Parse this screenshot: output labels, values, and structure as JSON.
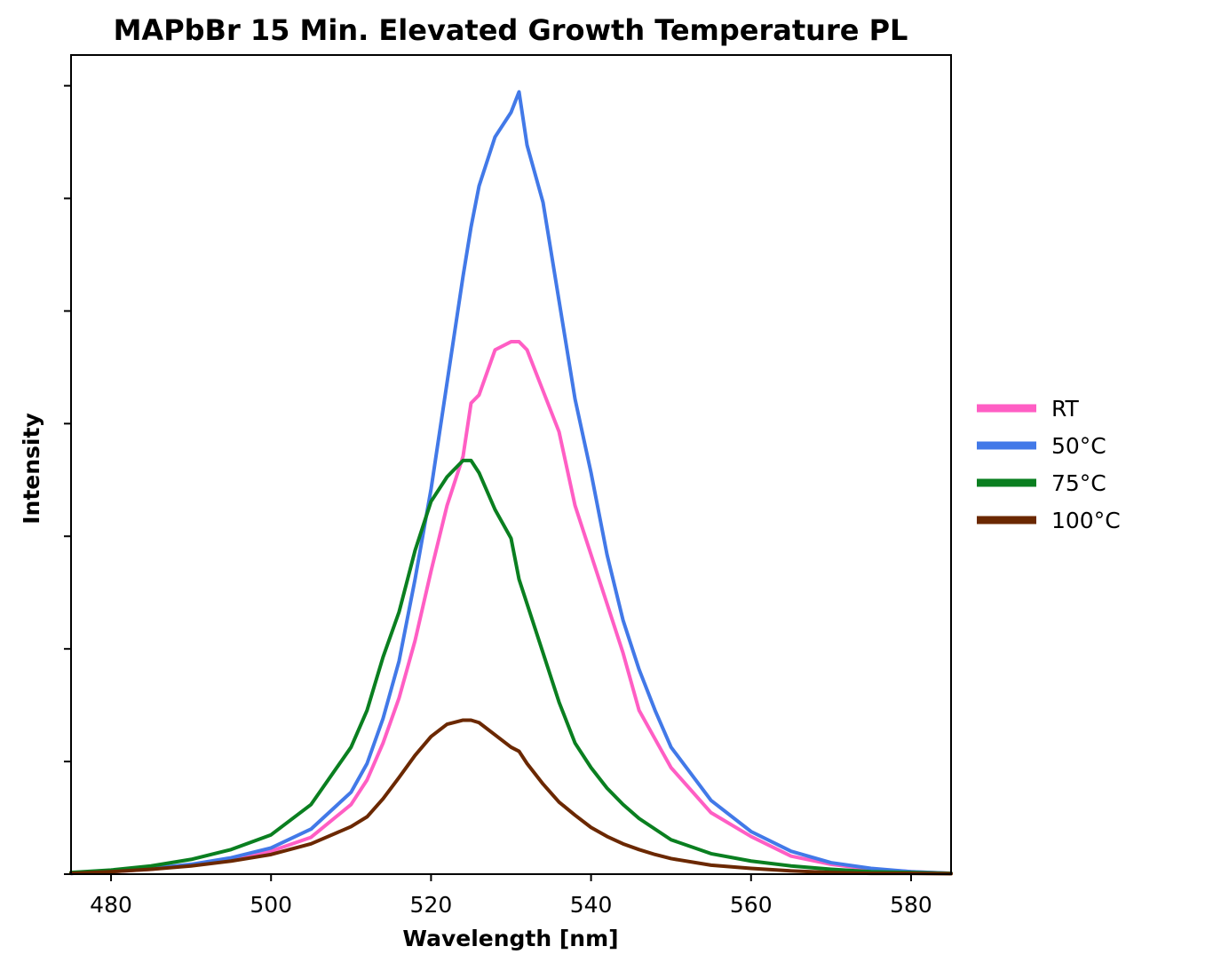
{
  "chart_data": {
    "type": "line",
    "title": "MAPbBr 15 Min. Elevated Growth Temperature PL",
    "xlabel": "Wavelength [nm]",
    "ylabel": "Intensity",
    "xlim": [
      475,
      585
    ],
    "ylim": [
      0,
      1.0
    ],
    "xticks": [
      480,
      500,
      520,
      540,
      560,
      580
    ],
    "ytick_labels_shown": false,
    "yticks": [
      0,
      0.1375,
      0.275,
      0.4125,
      0.55,
      0.6875,
      0.825,
      0.9625
    ],
    "grid": false,
    "legend_position": "right-outside",
    "x": [
      475,
      480,
      485,
      490,
      495,
      500,
      505,
      510,
      512,
      514,
      516,
      518,
      520,
      522,
      524,
      525,
      526,
      528,
      530,
      531,
      532,
      534,
      536,
      538,
      540,
      542,
      544,
      546,
      548,
      550,
      555,
      560,
      565,
      570,
      575,
      580,
      585
    ],
    "series": [
      {
        "name": "RT",
        "color": "#ff5ec4",
        "values": [
          0.001,
          0.003,
          0.006,
          0.011,
          0.018,
          0.028,
          0.045,
          0.085,
          0.115,
          0.16,
          0.215,
          0.285,
          0.37,
          0.45,
          0.51,
          0.575,
          0.585,
          0.64,
          0.65,
          0.65,
          0.64,
          0.59,
          0.54,
          0.45,
          0.39,
          0.33,
          0.27,
          0.2,
          0.165,
          0.13,
          0.075,
          0.046,
          0.022,
          0.012,
          0.006,
          0.003,
          0.001
        ]
      },
      {
        "name": "50°C",
        "color": "#4279e8",
        "values": [
          0.001,
          0.003,
          0.007,
          0.012,
          0.02,
          0.032,
          0.055,
          0.1,
          0.135,
          0.19,
          0.26,
          0.36,
          0.47,
          0.6,
          0.73,
          0.79,
          0.84,
          0.9,
          0.93,
          0.955,
          0.89,
          0.82,
          0.7,
          0.58,
          0.49,
          0.39,
          0.31,
          0.25,
          0.2,
          0.155,
          0.09,
          0.052,
          0.028,
          0.014,
          0.007,
          0.003,
          0.001
        ]
      },
      {
        "name": "75°C",
        "color": "#0a7f20",
        "values": [
          0.002,
          0.005,
          0.01,
          0.018,
          0.03,
          0.048,
          0.085,
          0.155,
          0.2,
          0.265,
          0.32,
          0.395,
          0.455,
          0.485,
          0.505,
          0.505,
          0.49,
          0.445,
          0.41,
          0.36,
          0.33,
          0.27,
          0.21,
          0.16,
          0.13,
          0.105,
          0.085,
          0.068,
          0.055,
          0.042,
          0.025,
          0.016,
          0.01,
          0.006,
          0.003,
          0.002,
          0.001
        ]
      },
      {
        "name": "100°C",
        "color": "#6b2800",
        "values": [
          0.001,
          0.003,
          0.006,
          0.01,
          0.016,
          0.024,
          0.037,
          0.058,
          0.07,
          0.092,
          0.118,
          0.145,
          0.168,
          0.183,
          0.188,
          0.188,
          0.185,
          0.17,
          0.155,
          0.15,
          0.135,
          0.11,
          0.088,
          0.072,
          0.057,
          0.046,
          0.037,
          0.03,
          0.024,
          0.019,
          0.011,
          0.007,
          0.004,
          0.002,
          0.001,
          0.001,
          0.0005
        ]
      }
    ]
  }
}
